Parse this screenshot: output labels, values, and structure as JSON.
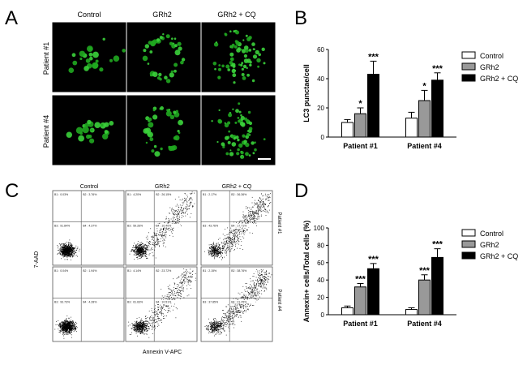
{
  "figure": {
    "panel_letters": [
      "A",
      "B",
      "C",
      "D"
    ]
  },
  "micro": {
    "columns": [
      "Control",
      "GRh2",
      "GRh2 + CQ"
    ],
    "rows": [
      "Patient #1",
      "Patient #4"
    ]
  },
  "flow": {
    "columns": [
      "Control",
      "GRh2",
      "GRh2 + CQ"
    ],
    "rows": [
      "Patient #1",
      "Patient #4"
    ],
    "xlabel": "Annexin V-APC",
    "ylabel": "7-AAD",
    "cells": [
      [
        {
          "B1": "B1 : 0.03%",
          "B2": "B2 : 3.76%",
          "B3": "B3 : 91.84%",
          "B4": "B4 : 4.37%",
          "shift": 0.0
        },
        {
          "B1": "B1 : 4.20%",
          "B2": "B2 : 26.15%",
          "B3": "B3 : 59.26%",
          "B4": "B4 : 10.40%",
          "shift": 0.55
        },
        {
          "B1": "B1 : 2.17%",
          "B2": "B2 : 36.36%",
          "B3": "B3 : 43.76%",
          "B4": "B4 : 17.71%",
          "shift": 0.75
        }
      ],
      [
        {
          "B1": "B1 : 0.04%",
          "B2": "B2 : 1.94%",
          "B3": "B3 : 93.73%",
          "B4": "B4 : 4.28%",
          "shift": 0.0
        },
        {
          "B1": "B1 : 4.14%",
          "B2": "B2 : 23.72%",
          "B3": "B3 : 61.63%",
          "B4": "B4 : 10.51%",
          "shift": 0.55
        },
        {
          "B1": "B1 : 2.15%",
          "B2": "B2 : 38.76%",
          "B3": "B3 : 37.85%",
          "B4": "B4 : 21.25%",
          "shift": 0.78
        }
      ]
    ]
  },
  "chart_data": [
    {
      "panel": "B",
      "type": "bar",
      "ylabel": "LC3 punctae/cell",
      "ylim": [
        0,
        60
      ],
      "yticks": [
        0,
        20,
        40,
        60
      ],
      "categories": [
        "Patient #1",
        "Patient #4"
      ],
      "series": [
        {
          "name": "Control",
          "values": [
            10,
            13
          ],
          "errors": [
            2,
            4
          ],
          "stars": [
            "",
            ""
          ],
          "color": "#ffffff"
        },
        {
          "name": "GRh2",
          "values": [
            16,
            25
          ],
          "errors": [
            4,
            7
          ],
          "stars": [
            "*",
            "*"
          ],
          "color": "#999999"
        },
        {
          "name": "GRh2 + CQ",
          "values": [
            43,
            39
          ],
          "errors": [
            9,
            5
          ],
          "stars": [
            "***",
            "***"
          ],
          "color": "#000000"
        }
      ],
      "legend": "right"
    },
    {
      "panel": "D",
      "type": "bar",
      "ylabel": "Annexin+ cells/Total cells (%)",
      "ylim": [
        0,
        100
      ],
      "yticks": [
        0,
        20,
        40,
        60,
        80,
        100
      ],
      "categories": [
        "Patient #1",
        "Patient #4"
      ],
      "series": [
        {
          "name": "Control",
          "values": [
            8,
            6
          ],
          "errors": [
            2,
            2
          ],
          "stars": [
            "",
            ""
          ],
          "color": "#ffffff"
        },
        {
          "name": "GRh2",
          "values": [
            32,
            40
          ],
          "errors": [
            4,
            6
          ],
          "stars": [
            "***",
            "***"
          ],
          "color": "#999999"
        },
        {
          "name": "GRh2 + CQ",
          "values": [
            53,
            66
          ],
          "errors": [
            6,
            10
          ],
          "stars": [
            "***",
            "***"
          ],
          "color": "#000000"
        }
      ],
      "legend": "right"
    }
  ]
}
